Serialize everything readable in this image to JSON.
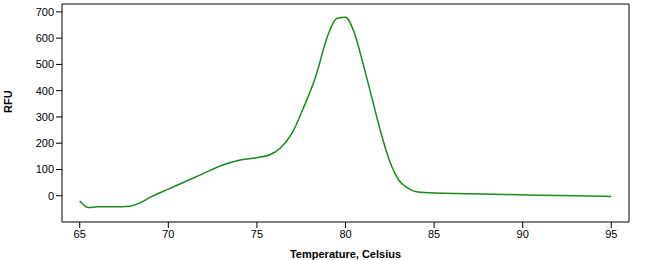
{
  "chart_data": {
    "type": "line",
    "x_label": "Temperature, Celsius",
    "y_label": "RFU",
    "x": [
      65,
      65.5,
      66,
      67,
      67.8,
      68.3,
      69,
      70,
      71,
      72,
      73,
      74,
      75,
      75.7,
      76.3,
      77,
      77.6,
      78.3,
      79,
      79.5,
      80,
      80.5,
      81,
      81.5,
      82,
      82.5,
      83,
      83.5,
      84,
      85,
      87,
      89,
      91,
      93,
      95
    ],
    "series": [
      {
        "name": "RFU",
        "color": "#1a8a1a",
        "values": [
          -20,
          -45,
          -42,
          -42,
          -40,
          -30,
          -5,
          25,
          55,
          85,
          115,
          135,
          145,
          155,
          180,
          240,
          330,
          450,
          610,
          675,
          680,
          620,
          500,
          370,
          240,
          130,
          60,
          30,
          15,
          10,
          8,
          5,
          2,
          0,
          -3
        ]
      }
    ],
    "xlim": [
      64,
      96
    ],
    "ylim": [
      -100,
      730
    ],
    "xticks": [
      65,
      70,
      75,
      80,
      85,
      90,
      95
    ],
    "yticks": [
      0,
      100,
      200,
      300,
      400,
      500,
      600,
      700
    ],
    "grid": false
  }
}
